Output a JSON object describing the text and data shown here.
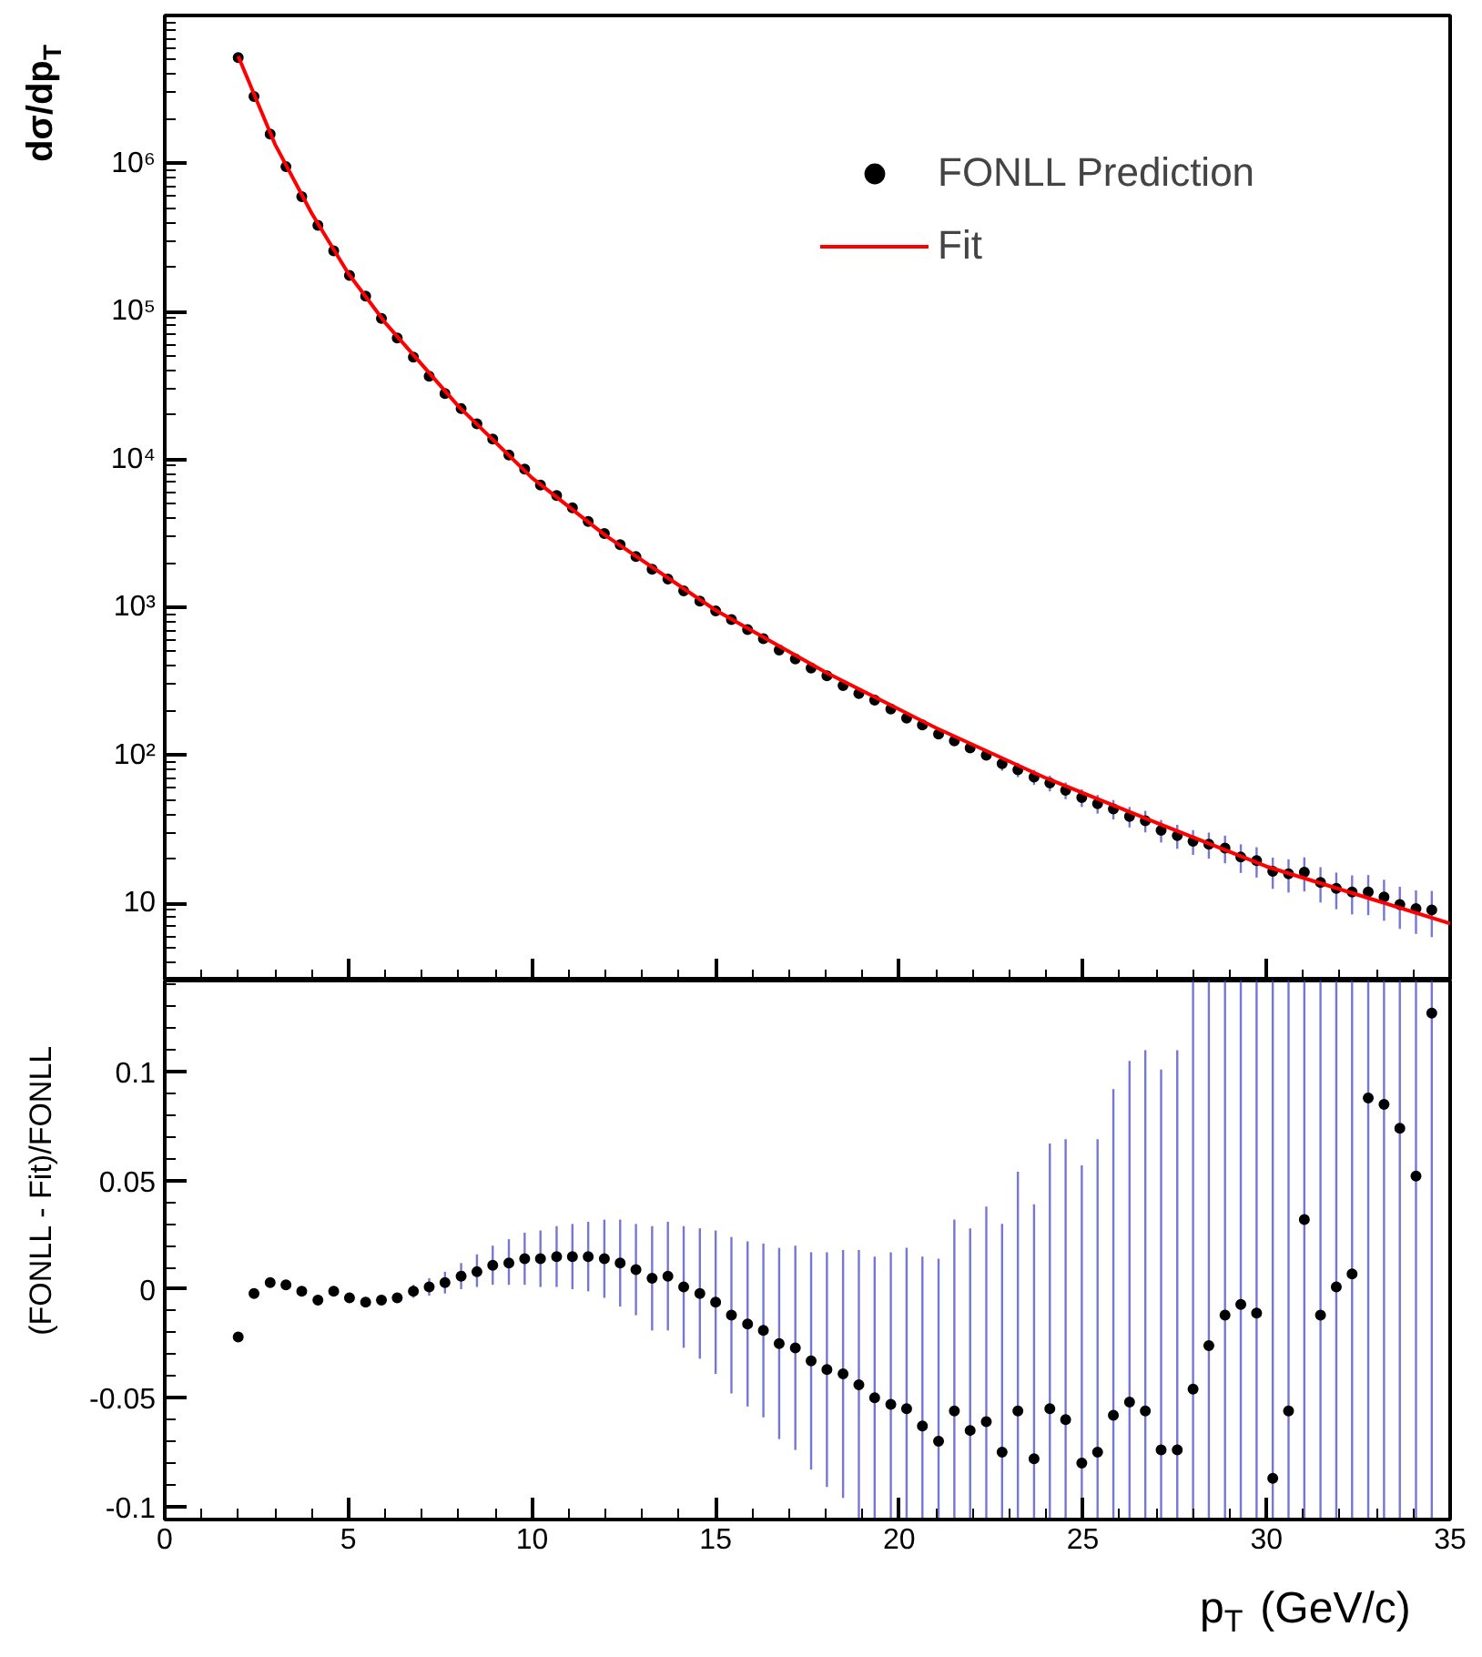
{
  "chart_data": [
    {
      "type": "scatter",
      "ylabel": "dσ/dp$_{T}$",
      "log": true,
      "tick_labels": "y",
      "legend": "top right",
      "marker": "circle",
      "xlim": [
        0,
        35
      ],
      "xticks": [
        0,
        5,
        10,
        15,
        20,
        25,
        30,
        35
      ],
      "ylim": [
        3,
        10000000
      ],
      "yticks": [
        10,
        {
          "value": 100,
          "label": "10²"
        },
        {
          "value": 1000,
          "label": "10³"
        },
        {
          "value": 10000,
          "label": "10⁴"
        },
        {
          "value": 100000,
          "label": "10⁵"
        },
        {
          "value": 1000000,
          "label": "10⁶"
        }
      ],
      "x": [
        2.0,
        2.43,
        2.87,
        3.3,
        3.73,
        4.17,
        4.6,
        5.03,
        5.47,
        5.9,
        6.33,
        6.77,
        7.2,
        7.63,
        8.07,
        8.5,
        8.93,
        9.37,
        9.8,
        10.23,
        10.67,
        11.1,
        11.53,
        11.97,
        12.4,
        12.83,
        13.27,
        13.7,
        14.13,
        14.57,
        15.0,
        15.43,
        15.87,
        16.3,
        16.73,
        17.17,
        17.6,
        18.03,
        18.47,
        18.9,
        19.33,
        19.77,
        20.2,
        20.63,
        21.07,
        21.5,
        21.93,
        22.37,
        22.8,
        23.23,
        23.67,
        24.1,
        24.53,
        24.97,
        25.4,
        25.83,
        26.27,
        26.7,
        27.13,
        27.57,
        28.0,
        28.43,
        28.87,
        29.3,
        29.73,
        30.17,
        30.6,
        31.03,
        31.47,
        31.9,
        32.33,
        32.77,
        33.2,
        33.63,
        34.07,
        34.5
      ],
      "series": [
        {
          "name": "FONLL Prediction",
          "type": "scatter",
          "color": "#000000",
          "values": [
            5200000,
            2830000,
            1580000,
            950000,
            596000,
            382000,
            257000,
            175000,
            127000,
            89500,
            66000,
            49000,
            36500,
            27800,
            22000,
            17400,
            13700,
            10700,
            8600,
            6700,
            5700,
            4700,
            3800,
            3150,
            2650,
            2200,
            1810,
            1550,
            1290,
            1100,
            944,
            826,
            706,
            614,
            514,
            447,
            388,
            344,
            296,
            261,
            236,
            205,
            178,
            160,
            139,
            125,
            112,
            100,
            87.8,
            79.8,
            71.3,
            64.9,
            58,
            51.8,
            47.1,
            43.3,
            38.6,
            36.1,
            31.1,
            28.6,
            26.2,
            25,
            23.6,
            20.5,
            19.4,
            16.4,
            15.8,
            16.2,
            13.8,
            12.6,
            11.9,
            11.9,
            11,
            9.8,
            9.2,
            9.0
          ],
          "errors": [
            null,
            null,
            null,
            null,
            null,
            null,
            null,
            null,
            null,
            null,
            null,
            null,
            null,
            null,
            null,
            null,
            null,
            null,
            null,
            null,
            null,
            null,
            null,
            null,
            null,
            null,
            null,
            null,
            null,
            null,
            null,
            null,
            null,
            null,
            null,
            null,
            null,
            null,
            null,
            null,
            null,
            null,
            null,
            null,
            null,
            null,
            null,
            null,
            9.2,
            8.8,
            8.3,
            7.9,
            7.5,
            7.1,
            6.8,
            6.5,
            6.1,
            6.0,
            5.4,
            5.3,
            5.0,
            5.0,
            5.0,
            4.5,
            4.5,
            3.9,
            4.0,
            4.2,
            3.7,
            3.5,
            3.5,
            3.6,
            3.4,
            3.1,
            3.0,
            3.1
          ]
        },
        {
          "name": "Fit",
          "type": "line",
          "color": "#ff0000",
          "marker": "none",
          "line_style": "solid",
          "x": [
            2,
            3,
            4,
            5,
            6,
            8,
            10,
            12,
            15,
            18,
            21,
            24,
            27,
            30,
            33,
            35
          ],
          "values": [
            5300000,
            1350000,
            460000,
            180000,
            84000,
            22800,
            7500,
            3060,
            955,
            363,
            153,
            70,
            35,
            17.7,
            10.4,
            7.3
          ]
        }
      ]
    },
    {
      "type": "scatter",
      "xlabel": "p$_{T}$ (GeV/c)",
      "ylabel": "(FONLL - Fit)/FONLL",
      "marker": "circle",
      "xlim": [
        0,
        35
      ],
      "xticks": [
        0,
        5,
        10,
        15,
        20,
        25,
        30,
        35
      ],
      "ylim": [
        -0.106,
        0.142
      ],
      "yticks": [
        -0.1,
        -0.05,
        0,
        0.05,
        0.1
      ],
      "x": [
        2.0,
        2.43,
        2.87,
        3.3,
        3.73,
        4.17,
        4.6,
        5.03,
        5.47,
        5.9,
        6.33,
        6.77,
        7.2,
        7.63,
        8.07,
        8.5,
        8.93,
        9.37,
        9.8,
        10.23,
        10.67,
        11.1,
        11.53,
        11.97,
        12.4,
        12.83,
        13.27,
        13.7,
        14.13,
        14.57,
        15.0,
        15.43,
        15.87,
        16.3,
        16.73,
        17.17,
        17.6,
        18.03,
        18.47,
        18.9,
        19.33,
        19.77,
        20.2,
        20.63,
        21.07,
        21.5,
        21.93,
        22.37,
        22.8,
        23.23,
        23.67,
        24.1,
        24.53,
        24.97,
        25.4,
        25.83,
        26.27,
        26.7,
        27.13,
        27.57,
        28.0,
        28.43,
        28.87,
        29.3,
        29.73,
        30.17,
        30.6,
        31.03,
        31.47,
        31.9,
        32.33,
        32.77,
        33.2,
        33.63,
        34.07,
        34.5
      ],
      "series": [
        {
          "color": "#000000",
          "values": [
            -0.022,
            -0.002,
            0.003,
            0.002,
            -0.001,
            -0.005,
            -0.001,
            -0.004,
            -0.006,
            -0.005,
            -0.004,
            -0.001,
            0.001,
            0.003,
            0.006,
            0.008,
            0.011,
            0.012,
            0.014,
            0.014,
            0.015,
            0.015,
            0.015,
            0.014,
            0.012,
            0.009,
            0.005,
            0.006,
            0.001,
            -0.002,
            -0.006,
            -0.012,
            -0.016,
            -0.019,
            -0.025,
            -0.027,
            -0.033,
            -0.037,
            -0.039,
            -0.044,
            -0.05,
            -0.053,
            -0.055,
            -0.063,
            -0.07,
            -0.056,
            -0.065,
            -0.061,
            -0.075,
            -0.056,
            -0.078,
            -0.055,
            -0.06,
            -0.08,
            -0.075,
            -0.058,
            -0.052,
            -0.056,
            -0.074,
            -0.074,
            -0.046,
            -0.026,
            -0.012,
            -0.007,
            -0.011,
            -0.087,
            -0.056,
            0.032,
            -0.012,
            0.001,
            0.007,
            0.088,
            0.085,
            0.074,
            0.052,
            0.127
          ],
          "errors": [
            null,
            null,
            null,
            null,
            null,
            null,
            null,
            null,
            null,
            null,
            null,
            [
              -0.004,
              0.002
            ],
            [
              -0.003,
              0.005
            ],
            [
              -0.002,
              0.008
            ],
            [
              0,
              0.012
            ],
            [
              0.001,
              0.016
            ],
            [
              0.002,
              0.02
            ],
            [
              0.002,
              0.023
            ],
            [
              0.002,
              0.026
            ],
            [
              0.001,
              0.027
            ],
            [
              0.001,
              0.029
            ],
            [
              0,
              0.03
            ],
            [
              -0.001,
              0.031
            ],
            [
              -0.004,
              0.032
            ],
            [
              -0.008,
              0.032
            ],
            [
              -0.012,
              0.03
            ],
            [
              -0.019,
              0.029
            ],
            [
              -0.019,
              0.031
            ],
            [
              -0.027,
              0.029
            ],
            [
              -0.032,
              0.028
            ],
            [
              -0.039,
              0.027
            ],
            [
              -0.048,
              0.024
            ],
            [
              -0.054,
              0.022
            ],
            [
              -0.059,
              0.021
            ],
            [
              -0.069,
              0.019
            ],
            [
              -0.074,
              0.02
            ],
            [
              -0.083,
              0.017
            ],
            [
              -0.091,
              0.017
            ],
            [
              -0.096,
              0.018
            ],
            [
              -0.106,
              0.018
            ],
            [
              -0.106,
              0.015
            ],
            [
              -0.106,
              0.017
            ],
            [
              -0.106,
              0.019
            ],
            [
              -0.106,
              0.015
            ],
            [
              -0.106,
              0.014
            ],
            [
              -0.106,
              0.032
            ],
            [
              -0.106,
              0.028
            ],
            [
              -0.106,
              0.038
            ],
            [
              -0.106,
              0.03
            ],
            [
              -0.106,
              0.054
            ],
            [
              -0.106,
              0.039
            ],
            [
              -0.106,
              0.067
            ],
            [
              -0.106,
              0.069
            ],
            [
              -0.106,
              0.057
            ],
            [
              -0.106,
              0.069
            ],
            [
              -0.106,
              0.092
            ],
            [
              -0.106,
              0.105
            ],
            [
              -0.106,
              0.11
            ],
            [
              -0.106,
              0.101
            ],
            [
              -0.106,
              0.11
            ],
            [
              -0.106,
              0.142
            ],
            [
              -0.106,
              0.142
            ],
            [
              -0.106,
              0.142
            ],
            [
              -0.106,
              0.142
            ],
            [
              -0.106,
              0.142
            ],
            [
              -0.106,
              0.142
            ],
            [
              -0.106,
              0.142
            ],
            [
              -0.106,
              0.142
            ],
            [
              -0.106,
              0.142
            ],
            [
              -0.106,
              0.142
            ],
            [
              -0.106,
              0.142
            ],
            [
              -0.106,
              0.142
            ],
            [
              -0.106,
              0.142
            ],
            [
              -0.106,
              0.142
            ],
            [
              -0.106,
              0.142
            ],
            [
              -0.106,
              0.142
            ]
          ]
        }
      ]
    }
  ]
}
